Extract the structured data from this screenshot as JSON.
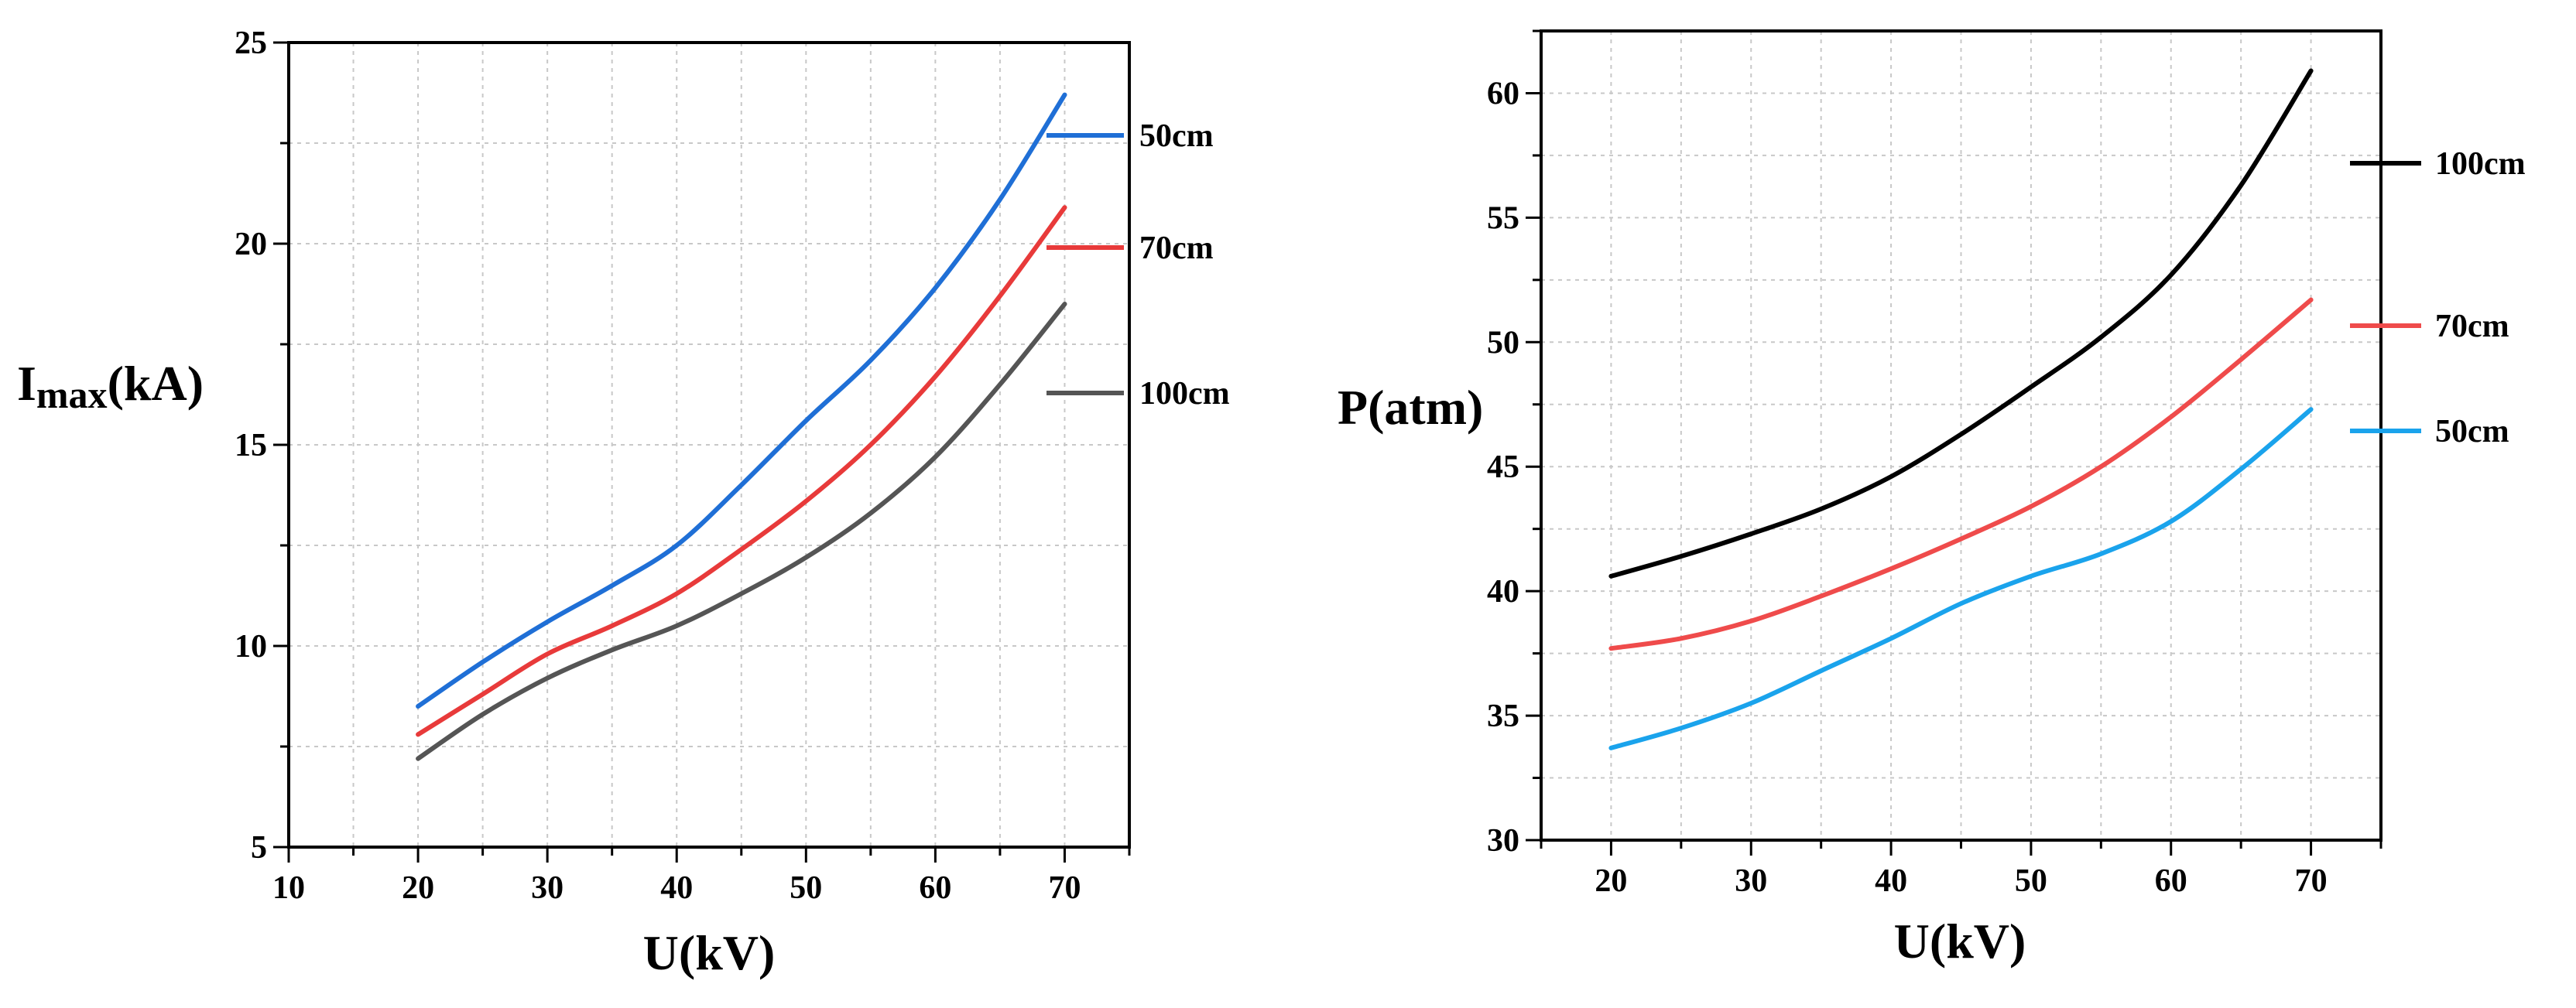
{
  "chart_data": [
    {
      "type": "line",
      "xlabel": "U(kV)",
      "ylabel_main": "I",
      "ylabel_sub": "max",
      "ylabel_rest": "(kA)",
      "xlim": [
        10,
        75
      ],
      "ylim": [
        5,
        25
      ],
      "xticks": [
        10,
        20,
        30,
        40,
        50,
        60,
        70
      ],
      "yticks": [
        5,
        10,
        15,
        20,
        25
      ],
      "x_minor_step": 5,
      "y_minor_step": 2.5,
      "grid": true,
      "legend_placement": "right",
      "series": [
        {
          "name": "50cm",
          "color": "#1f6fd6",
          "x": [
            20,
            25,
            30,
            35,
            40,
            45,
            50,
            55,
            60,
            65,
            70
          ],
          "y": [
            8.5,
            9.6,
            10.6,
            11.5,
            12.5,
            14.0,
            15.6,
            17.1,
            18.9,
            21.1,
            23.7
          ]
        },
        {
          "name": "70cm",
          "color": "#e83a3a",
          "x": [
            20,
            25,
            30,
            35,
            40,
            45,
            50,
            55,
            60,
            65,
            70
          ],
          "y": [
            7.8,
            8.8,
            9.8,
            10.5,
            11.3,
            12.4,
            13.6,
            15.0,
            16.7,
            18.7,
            20.9
          ]
        },
        {
          "name": "100cm",
          "color": "#555555",
          "x": [
            20,
            25,
            30,
            35,
            40,
            45,
            50,
            55,
            60,
            65,
            70
          ],
          "y": [
            7.2,
            8.3,
            9.2,
            9.9,
            10.5,
            11.3,
            12.2,
            13.3,
            14.7,
            16.5,
            18.5
          ]
        }
      ]
    },
    {
      "type": "line",
      "xlabel": "U(kV)",
      "ylabel": "P(atm)",
      "xlim": [
        15,
        75
      ],
      "ylim": [
        30,
        62.5
      ],
      "xticks": [
        20,
        30,
        40,
        50,
        60,
        70
      ],
      "yticks": [
        30,
        35,
        40,
        45,
        50,
        55,
        60
      ],
      "x_minor_step": 5,
      "y_minor_step": 2.5,
      "grid": true,
      "legend_placement": "right",
      "series": [
        {
          "name": "100cm",
          "color": "#000000",
          "x": [
            20,
            25,
            30,
            35,
            40,
            45,
            50,
            55,
            60,
            65,
            70
          ],
          "y": [
            40.6,
            41.4,
            42.3,
            43.3,
            44.6,
            46.3,
            48.2,
            50.2,
            52.7,
            56.3,
            60.9
          ]
        },
        {
          "name": "70cm",
          "color": "#ef4b4b",
          "x": [
            20,
            25,
            30,
            35,
            40,
            45,
            50,
            55,
            60,
            65,
            70
          ],
          "y": [
            37.7,
            38.1,
            38.8,
            39.8,
            40.9,
            42.1,
            43.4,
            45.0,
            47.0,
            49.3,
            51.7
          ]
        },
        {
          "name": "50cm",
          "color": "#1aa3ec",
          "x": [
            20,
            25,
            30,
            35,
            40,
            45,
            50,
            55,
            60,
            65,
            70
          ],
          "y": [
            33.7,
            34.5,
            35.5,
            36.8,
            38.1,
            39.5,
            40.6,
            41.5,
            42.8,
            44.9,
            47.3
          ]
        }
      ]
    }
  ]
}
